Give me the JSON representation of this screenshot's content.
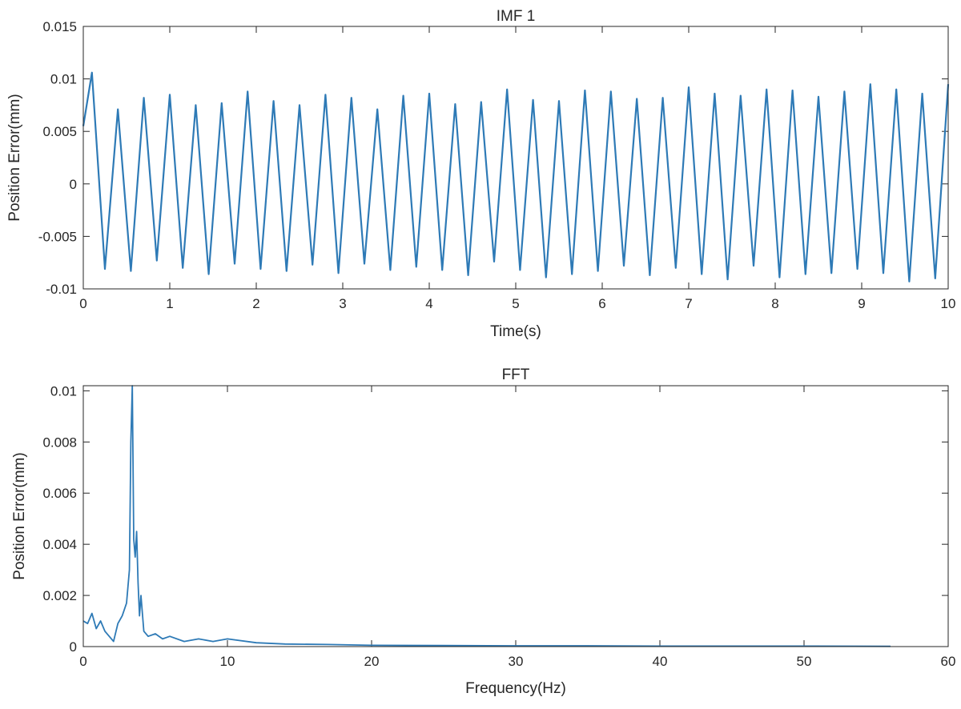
{
  "chart_data": [
    {
      "type": "line",
      "title": "IMF 1",
      "xlabel": "Time(s)",
      "ylabel": "Position Error(mm)",
      "xlim": [
        0,
        10
      ],
      "ylim": [
        -0.01,
        0.015
      ],
      "xticks": [
        0,
        1,
        2,
        3,
        4,
        5,
        6,
        7,
        8,
        9,
        10
      ],
      "xtick_labels": [
        "0",
        "1",
        "2",
        "3",
        "4",
        "5",
        "6",
        "7",
        "8",
        "9",
        "10"
      ],
      "yticks": [
        -0.01,
        -0.005,
        0,
        0.005,
        0.01,
        0.015
      ],
      "ytick_labels": [
        "-0.01",
        "-0.005",
        "0",
        "0.005",
        "0.01",
        "0.015"
      ],
      "grid": false,
      "line_color": "#2e7ab6",
      "series": [
        {
          "x": [
            0,
            0.1,
            0.25,
            0.4,
            0.55,
            0.7,
            0.85,
            1.0,
            1.15,
            1.3,
            1.45,
            1.6,
            1.75,
            1.9,
            2.05,
            2.2,
            2.35,
            2.5,
            2.65,
            2.8,
            2.95,
            3.1,
            3.25,
            3.4,
            3.55,
            3.7,
            3.85,
            4.0,
            4.15,
            4.3,
            4.45,
            4.6,
            4.75,
            4.9,
            5.05,
            5.2,
            5.35,
            5.5,
            5.65,
            5.8,
            5.95,
            6.1,
            6.25,
            6.4,
            6.55,
            6.7,
            6.85,
            7.0,
            7.15,
            7.3,
            7.45,
            7.6,
            7.75,
            7.9,
            8.05,
            8.2,
            8.35,
            8.5,
            8.65,
            8.8,
            8.95,
            9.1,
            9.25,
            9.4,
            9.55,
            9.7,
            9.85,
            10.0
          ],
          "y": [
            0.0055,
            0.0106,
            -0.0081,
            0.0071,
            -0.0083,
            0.0082,
            -0.0073,
            0.0085,
            -0.008,
            0.0075,
            -0.0086,
            0.0077,
            -0.0076,
            0.0088,
            -0.0081,
            0.0079,
            -0.0083,
            0.0075,
            -0.0077,
            0.0085,
            -0.0085,
            0.0082,
            -0.0076,
            0.0071,
            -0.0082,
            0.0084,
            -0.0079,
            0.0086,
            -0.0082,
            0.0076,
            -0.0087,
            0.0078,
            -0.0074,
            0.009,
            -0.0082,
            0.008,
            -0.0089,
            0.0079,
            -0.0086,
            0.0089,
            -0.0083,
            0.0088,
            -0.0078,
            0.0081,
            -0.0087,
            0.0082,
            -0.008,
            0.0092,
            -0.0086,
            0.0086,
            -0.0091,
            0.0084,
            -0.0078,
            0.009,
            -0.0089,
            0.0089,
            -0.0086,
            0.0083,
            -0.0085,
            0.0088,
            -0.0081,
            0.0095,
            -0.0085,
            0.009,
            -0.0093,
            0.0086,
            -0.009,
            0.0095
          ]
        }
      ]
    },
    {
      "type": "line",
      "title": "FFT",
      "xlabel": "Frequency(Hz)",
      "ylabel": "Position Error(mm)",
      "xlim": [
        0,
        60
      ],
      "ylim": [
        0,
        0.0102
      ],
      "xticks": [
        0,
        10,
        20,
        30,
        40,
        50,
        60
      ],
      "xtick_labels": [
        "0",
        "10",
        "20",
        "30",
        "40",
        "50",
        "60"
      ],
      "yticks": [
        0,
        0.002,
        0.004,
        0.006,
        0.008,
        0.01
      ],
      "ytick_labels": [
        "0",
        "0.002",
        "0.004",
        "0.006",
        "0.008",
        "0.01"
      ],
      "grid": false,
      "line_color": "#2e7ab6",
      "series": [
        {
          "x": [
            0,
            0.3,
            0.6,
            0.9,
            1.2,
            1.5,
            1.8,
            2.1,
            2.4,
            2.7,
            3.0,
            3.2,
            3.3,
            3.4,
            3.5,
            3.6,
            3.7,
            3.8,
            3.9,
            4.0,
            4.2,
            4.5,
            5.0,
            5.5,
            6.0,
            7.0,
            8.0,
            9.0,
            10.0,
            12.0,
            14.0,
            17.0,
            20.0,
            25.0,
            30.0,
            35.0,
            40.0,
            45.0,
            50.0,
            56.0
          ],
          "y": [
            0.001,
            0.0009,
            0.0013,
            0.0007,
            0.001,
            0.0006,
            0.0004,
            0.0002,
            0.0009,
            0.0012,
            0.0017,
            0.003,
            0.008,
            0.0102,
            0.0042,
            0.0035,
            0.0045,
            0.0025,
            0.0012,
            0.002,
            0.0006,
            0.0004,
            0.0005,
            0.0003,
            0.0004,
            0.0002,
            0.0003,
            0.0002,
            0.0003,
            0.00015,
            0.0001,
            8e-05,
            5e-05,
            4e-05,
            3e-05,
            3e-05,
            2e-05,
            2e-05,
            2e-05,
            1e-05
          ]
        }
      ]
    }
  ]
}
